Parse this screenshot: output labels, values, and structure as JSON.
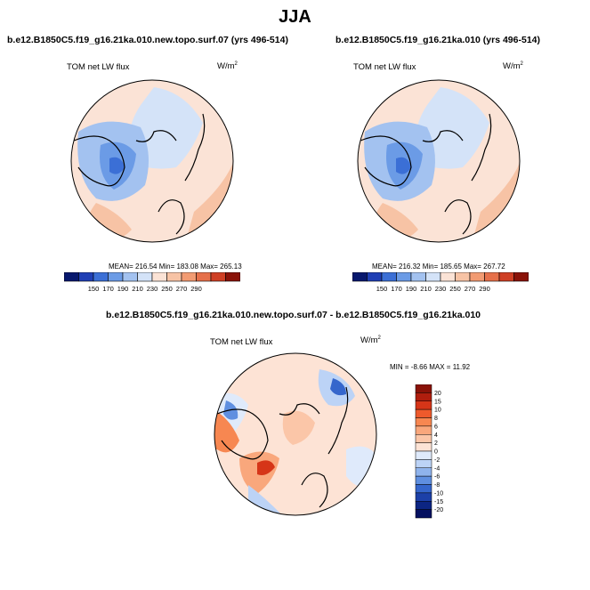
{
  "title": "JJA",
  "panels": [
    {
      "title": "b.e12.B1850C5.f19_g16.21ka.010.new.topo.surf.07 (yrs 496-514)",
      "variable": "TOM net LW flux",
      "units_base": "W/m",
      "units_exp": "2",
      "stats": "MEAN= 216.54  Min= 183.08  Max= 265.13",
      "colorbar": {
        "labels": [
          "150",
          "170",
          "190",
          "210",
          "230",
          "250",
          "270",
          "290"
        ],
        "colors": [
          "#08186e",
          "#1f3fb5",
          "#3b6fd6",
          "#6b9be6",
          "#a3c2f0",
          "#d4e3f8",
          "#fbe3d6",
          "#f7c3a5",
          "#f29b72",
          "#e6704a",
          "#cf3f24",
          "#8a1208"
        ]
      }
    },
    {
      "title": "b.e12.B1850C5.f19_g16.21ka.010 (yrs 496-514)",
      "variable": "TOM net LW flux",
      "units_base": "W/m",
      "units_exp": "2",
      "stats": "MEAN= 216.32  Min= 185.65  Max= 267.72",
      "colorbar": {
        "labels": [
          "150",
          "170",
          "190",
          "210",
          "230",
          "250",
          "270",
          "290"
        ],
        "colors": [
          "#08186e",
          "#1f3fb5",
          "#3b6fd6",
          "#6b9be6",
          "#a3c2f0",
          "#d4e3f8",
          "#fbe3d6",
          "#f7c3a5",
          "#f29b72",
          "#e6704a",
          "#cf3f24",
          "#8a1208"
        ]
      }
    },
    {
      "title": "b.e12.B1850C5.f19_g16.21ka.010.new.topo.surf.07 - b.e12.B1850C5.f19_g16.21ka.010",
      "variable": "TOM net LW flux",
      "units_base": "W/m",
      "units_exp": "2",
      "stats": "MIN =  -8.66 MAX =  11.92",
      "colorbar": {
        "labels": [
          "20",
          "15",
          "10",
          "8",
          "6",
          "4",
          "2",
          "0",
          "-2",
          "-4",
          "-6",
          "-8",
          "-10",
          "-15",
          "-20"
        ],
        "colors": [
          "#8a1208",
          "#b01e0e",
          "#d63518",
          "#ee5a2c",
          "#f78751",
          "#f9a77c",
          "#fbc6a8",
          "#fde3d5",
          "#dfeafb",
          "#bcd3f6",
          "#8fb3ec",
          "#5f8fe0",
          "#3566cc",
          "#1c40a8",
          "#0c2583",
          "#041060"
        ]
      }
    }
  ],
  "chart_data": [
    {
      "type": "heatmap",
      "projection": "north-polar-stereographic",
      "title": "b.e12.B1850C5.f19_g16.21ka.010.new.topo.surf.07 (yrs 496-514)",
      "season": "JJA",
      "variable": "TOM net LW flux",
      "units": "W/m2",
      "mean": 216.54,
      "min": 183.08,
      "max": 265.13,
      "levels": [
        150,
        170,
        190,
        210,
        230,
        250,
        270,
        290
      ]
    },
    {
      "type": "heatmap",
      "projection": "north-polar-stereographic",
      "title": "b.e12.B1850C5.f19_g16.21ka.010 (yrs 496-514)",
      "season": "JJA",
      "variable": "TOM net LW flux",
      "units": "W/m2",
      "mean": 216.32,
      "min": 185.65,
      "max": 267.72,
      "levels": [
        150,
        170,
        190,
        210,
        230,
        250,
        270,
        290
      ]
    },
    {
      "type": "heatmap",
      "projection": "north-polar-stereographic",
      "title": "b.e12.B1850C5.f19_g16.21ka.010.new.topo.surf.07 - b.e12.B1850C5.f19_g16.21ka.010",
      "season": "JJA",
      "variable": "TOM net LW flux",
      "units": "W/m2",
      "min": -8.66,
      "max": 11.92,
      "levels": [
        -20,
        -15,
        -10,
        -8,
        -6,
        -4,
        -2,
        0,
        2,
        4,
        6,
        8,
        10,
        15,
        20
      ]
    }
  ]
}
